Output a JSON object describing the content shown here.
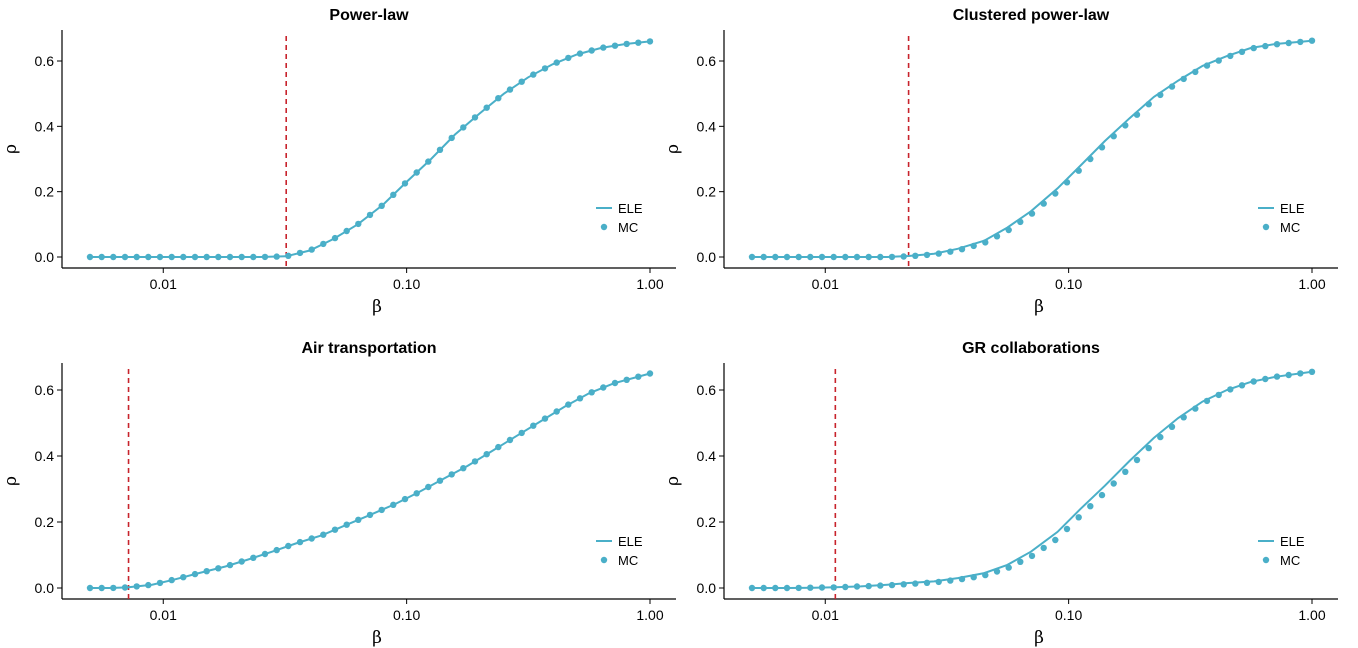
{
  "colors": {
    "series": "#4aafc8",
    "threshold": "#c8232c",
    "axis": "#000000"
  },
  "legend": {
    "line_label": "ELE",
    "point_label": "MC",
    "position": "right"
  },
  "chart_data": [
    {
      "type": "line",
      "title": "Power-law",
      "xlabel": "β",
      "ylabel": "ρ",
      "xscale": "log",
      "xlim": [
        0.005,
        1.0
      ],
      "ylim": [
        0,
        0.66
      ],
      "xticks": [
        0.01,
        0.1,
        1.0
      ],
      "xtick_labels": [
        "0.01",
        "0.10",
        "1.00"
      ],
      "yticks": [
        0.0,
        0.2,
        0.4,
        0.6
      ],
      "ytick_labels": [
        "0.0",
        "0.2",
        "0.4",
        "0.6"
      ],
      "threshold": 0.032,
      "series": [
        {
          "name": "ELE",
          "kind": "line",
          "x": [
            0.005,
            0.008,
            0.012,
            0.018,
            0.025,
            0.032,
            0.04,
            0.05,
            0.063,
            0.08,
            0.1,
            0.126,
            0.158,
            0.2,
            0.251,
            0.316,
            0.398,
            0.501,
            0.631,
            0.794,
            1.0
          ],
          "y": [
            0.0,
            0.0,
            0.0,
            0.0,
            0.0,
            0.002,
            0.02,
            0.055,
            0.1,
            0.16,
            0.23,
            0.3,
            0.375,
            0.44,
            0.5,
            0.55,
            0.59,
            0.62,
            0.64,
            0.652,
            0.66
          ]
        },
        {
          "name": "MC",
          "kind": "points",
          "x": [
            0.005,
            0.008,
            0.012,
            0.018,
            0.025,
            0.032,
            0.04,
            0.05,
            0.063,
            0.08,
            0.1,
            0.126,
            0.158,
            0.2,
            0.251,
            0.316,
            0.398,
            0.501,
            0.631,
            0.794,
            1.0
          ],
          "y": [
            0.0,
            0.0,
            0.0,
            0.0,
            0.0,
            0.002,
            0.02,
            0.055,
            0.1,
            0.16,
            0.23,
            0.3,
            0.375,
            0.44,
            0.5,
            0.55,
            0.59,
            0.62,
            0.64,
            0.652,
            0.66
          ]
        }
      ]
    },
    {
      "type": "line",
      "title": "Clustered power-law",
      "xlabel": "β",
      "ylabel": "ρ",
      "xscale": "log",
      "xlim": [
        0.005,
        1.0
      ],
      "ylim": [
        0,
        0.66
      ],
      "xticks": [
        0.01,
        0.1,
        1.0
      ],
      "xtick_labels": [
        "0.01",
        "0.10",
        "1.00"
      ],
      "yticks": [
        0.0,
        0.2,
        0.4,
        0.6
      ],
      "ytick_labels": [
        "0.0",
        "0.2",
        "0.4",
        "0.6"
      ],
      "threshold": 0.022,
      "series": [
        {
          "name": "ELE",
          "kind": "line",
          "x": [
            0.005,
            0.008,
            0.012,
            0.018,
            0.022,
            0.028,
            0.035,
            0.045,
            0.056,
            0.07,
            0.09,
            0.112,
            0.141,
            0.178,
            0.224,
            0.282,
            0.355,
            0.447,
            0.562,
            0.708,
            1.0
          ],
          "y": [
            0.0,
            0.0,
            0.0,
            0.0,
            0.003,
            0.01,
            0.025,
            0.05,
            0.09,
            0.14,
            0.21,
            0.28,
            0.355,
            0.425,
            0.49,
            0.54,
            0.585,
            0.615,
            0.64,
            0.652,
            0.662
          ]
        },
        {
          "name": "MC",
          "kind": "points",
          "x": [
            0.005,
            0.008,
            0.012,
            0.018,
            0.022,
            0.028,
            0.035,
            0.045,
            0.056,
            0.07,
            0.09,
            0.112,
            0.141,
            0.178,
            0.224,
            0.282,
            0.355,
            0.447,
            0.562,
            0.708,
            1.0
          ],
          "y": [
            0.0,
            0.0,
            0.0,
            0.0,
            0.002,
            0.008,
            0.02,
            0.043,
            0.08,
            0.13,
            0.2,
            0.27,
            0.345,
            0.415,
            0.482,
            0.535,
            0.58,
            0.612,
            0.638,
            0.651,
            0.662
          ]
        }
      ]
    },
    {
      "type": "line",
      "title": "Air transportation",
      "xlabel": "β",
      "ylabel": "ρ",
      "xscale": "log",
      "xlim": [
        0.005,
        1.0
      ],
      "ylim": [
        0,
        0.66
      ],
      "xticks": [
        0.01,
        0.1,
        1.0
      ],
      "xtick_labels": [
        "0.01",
        "0.10",
        "1.00"
      ],
      "yticks": [
        0.0,
        0.2,
        0.4,
        0.6
      ],
      "ytick_labels": [
        "0.0",
        "0.2",
        "0.4",
        "0.6"
      ],
      "threshold": 0.0072,
      "series": [
        {
          "name": "ELE",
          "kind": "line",
          "x": [
            0.005,
            0.006,
            0.0072,
            0.009,
            0.011,
            0.014,
            0.018,
            0.022,
            0.028,
            0.035,
            0.045,
            0.056,
            0.07,
            0.09,
            0.112,
            0.141,
            0.178,
            0.224,
            0.282,
            0.355,
            0.447,
            0.562,
            0.708,
            1.0
          ],
          "y": [
            0.0,
            0.0,
            0.002,
            0.01,
            0.025,
            0.045,
            0.065,
            0.085,
            0.11,
            0.135,
            0.16,
            0.19,
            0.22,
            0.255,
            0.29,
            0.33,
            0.37,
            0.415,
            0.46,
            0.505,
            0.55,
            0.59,
            0.62,
            0.65
          ]
        },
        {
          "name": "MC",
          "kind": "points",
          "x": [
            0.005,
            0.006,
            0.0072,
            0.009,
            0.011,
            0.014,
            0.018,
            0.022,
            0.028,
            0.035,
            0.045,
            0.056,
            0.07,
            0.09,
            0.112,
            0.141,
            0.178,
            0.224,
            0.282,
            0.355,
            0.447,
            0.562,
            0.708,
            1.0
          ],
          "y": [
            0.0,
            0.0,
            0.002,
            0.01,
            0.025,
            0.045,
            0.065,
            0.085,
            0.11,
            0.135,
            0.16,
            0.19,
            0.22,
            0.255,
            0.29,
            0.33,
            0.37,
            0.415,
            0.46,
            0.505,
            0.55,
            0.59,
            0.62,
            0.65
          ]
        }
      ]
    },
    {
      "type": "line",
      "title": "GR collaborations",
      "xlabel": "β",
      "ylabel": "ρ",
      "xscale": "log",
      "xlim": [
        0.005,
        1.0
      ],
      "ylim": [
        0,
        0.66
      ],
      "xticks": [
        0.01,
        0.1,
        1.0
      ],
      "xtick_labels": [
        "0.01",
        "0.10",
        "1.00"
      ],
      "yticks": [
        0.0,
        0.2,
        0.4,
        0.6
      ],
      "ytick_labels": [
        "0.0",
        "0.2",
        "0.4",
        "0.6"
      ],
      "threshold": 0.011,
      "series": [
        {
          "name": "ELE",
          "kind": "line",
          "x": [
            0.005,
            0.007,
            0.009,
            0.011,
            0.014,
            0.018,
            0.022,
            0.028,
            0.035,
            0.045,
            0.056,
            0.07,
            0.09,
            0.112,
            0.141,
            0.178,
            0.224,
            0.282,
            0.355,
            0.447,
            0.562,
            0.708,
            1.0
          ],
          "y": [
            0.0,
            0.0,
            0.001,
            0.002,
            0.005,
            0.01,
            0.015,
            0.02,
            0.03,
            0.045,
            0.07,
            0.11,
            0.17,
            0.24,
            0.31,
            0.385,
            0.455,
            0.515,
            0.565,
            0.6,
            0.625,
            0.64,
            0.655
          ]
        },
        {
          "name": "MC",
          "kind": "points",
          "x": [
            0.005,
            0.007,
            0.009,
            0.011,
            0.014,
            0.018,
            0.022,
            0.028,
            0.035,
            0.045,
            0.056,
            0.07,
            0.09,
            0.112,
            0.141,
            0.178,
            0.224,
            0.282,
            0.355,
            0.447,
            0.562,
            0.708,
            1.0
          ],
          "y": [
            0.0,
            0.0,
            0.001,
            0.002,
            0.005,
            0.008,
            0.012,
            0.017,
            0.025,
            0.038,
            0.06,
            0.095,
            0.15,
            0.22,
            0.29,
            0.365,
            0.44,
            0.505,
            0.56,
            0.598,
            0.624,
            0.64,
            0.655
          ]
        }
      ]
    }
  ]
}
